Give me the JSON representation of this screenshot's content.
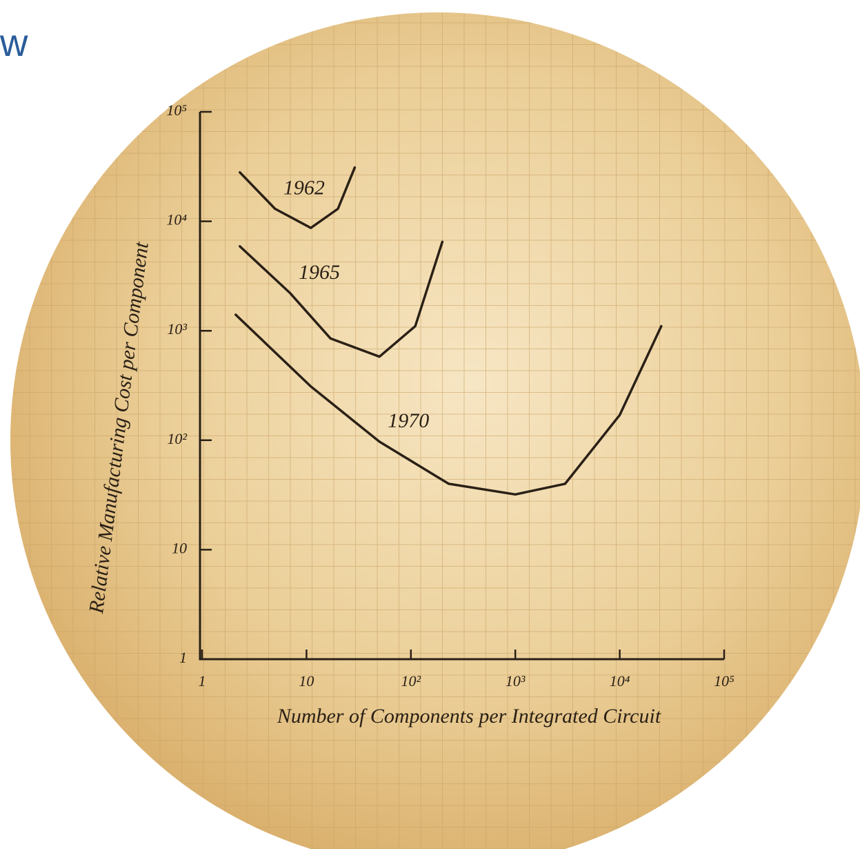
{
  "chart_data": {
    "type": "line",
    "title": "w",
    "x_label": "Number of Components per Integrated Circuit",
    "y_label": "Relative Manufacturing Cost per Component",
    "xscale": "log",
    "yscale": "log",
    "xlim": [
      1,
      100000
    ],
    "ylim": [
      1,
      100000
    ],
    "xticks": [
      1,
      10,
      {
        "value": 100,
        "label": "10²"
      },
      {
        "value": 1000,
        "label": "10³"
      },
      {
        "value": 10000,
        "label": "10⁴"
      },
      {
        "value": 100000,
        "label": "10⁵"
      }
    ],
    "yticks": [
      1,
      10,
      {
        "value": 100,
        "label": "10²"
      },
      {
        "value": 1000,
        "label": "10³"
      },
      {
        "value": 10000,
        "label": "10⁴"
      },
      {
        "value": 100000,
        "label": "10⁵"
      }
    ],
    "series": [
      {
        "name": "1962",
        "color": "#2a2016",
        "x": [
          2.3,
          5,
          11,
          20,
          29
        ],
        "values": [
          28000,
          13000,
          8700,
          13000,
          31000
        ]
      },
      {
        "name": "1965",
        "color": "#2a2016",
        "x": [
          2.3,
          7,
          17,
          50,
          110,
          200
        ],
        "values": [
          5900,
          2200,
          850,
          580,
          1100,
          6500
        ]
      },
      {
        "name": "1970",
        "color": "#2a2016",
        "x": [
          2.1,
          11,
          50,
          230,
          1000,
          3000,
          10000,
          25000
        ],
        "values": [
          1400,
          310,
          97,
          40,
          32,
          40,
          170,
          1100
        ]
      }
    ]
  }
}
